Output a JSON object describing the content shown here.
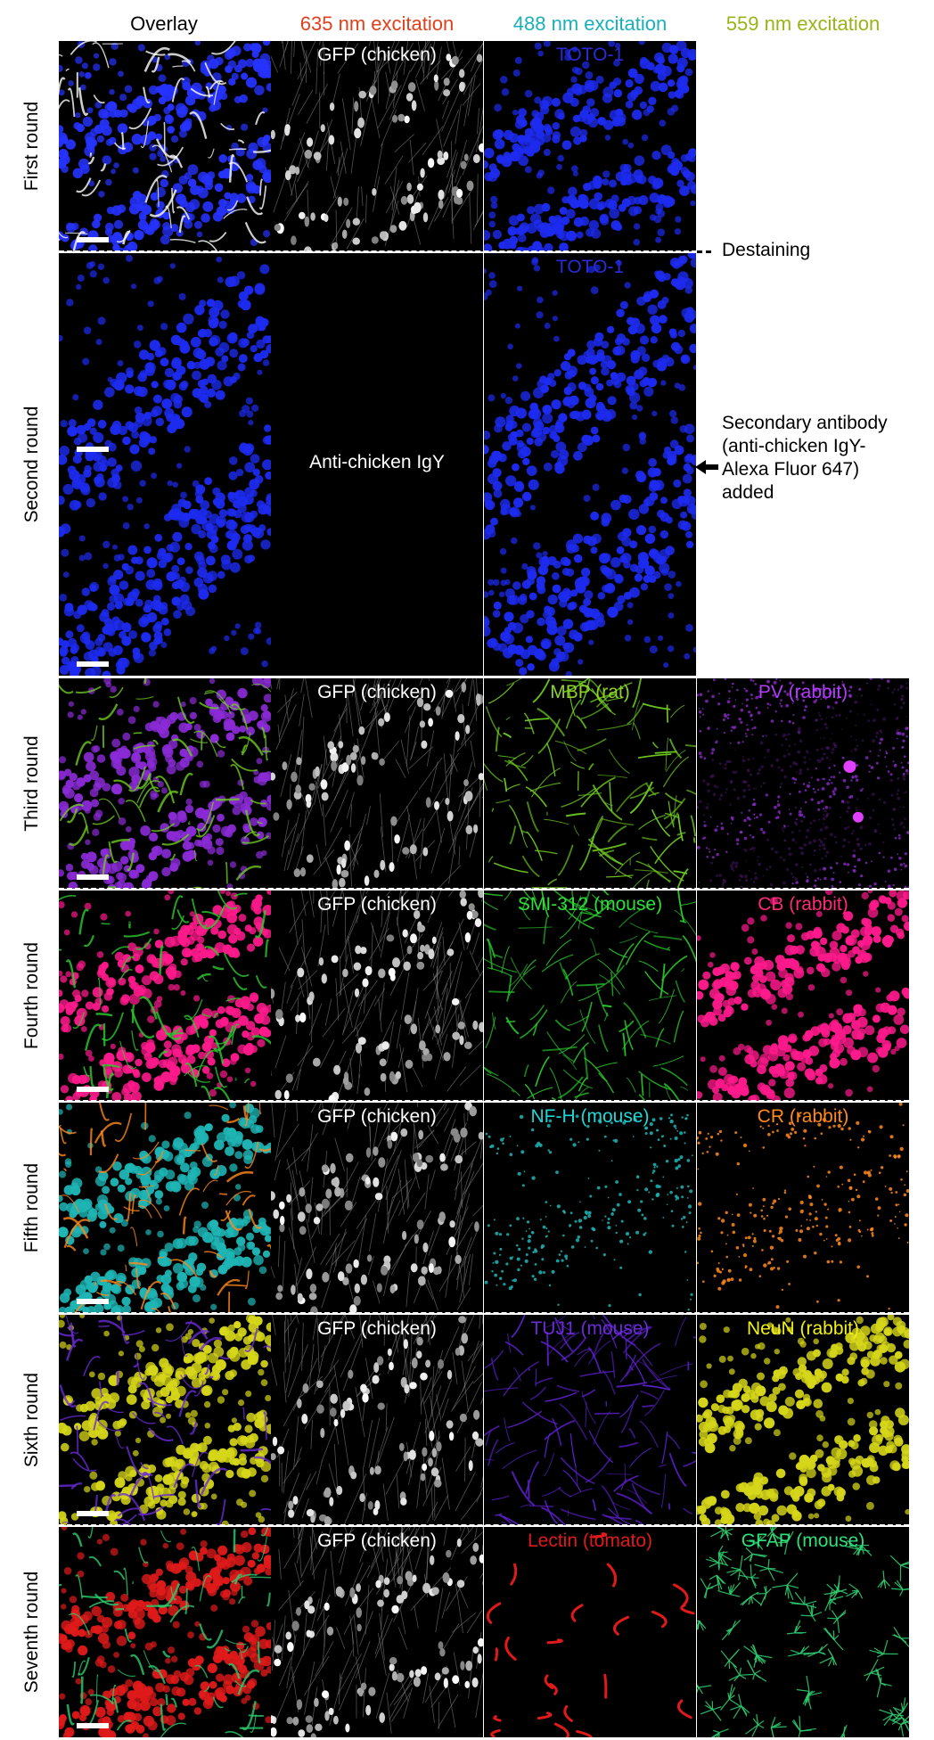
{
  "column_headers": [
    {
      "text": "Overlay",
      "color": "#000000"
    },
    {
      "text": "635 nm excitation",
      "color": "#e0401c"
    },
    {
      "text": "488 nm excitation",
      "color": "#19b0b8"
    },
    {
      "text": "559 nm excitation",
      "color": "#9ab319"
    }
  ],
  "rows": [
    {
      "label": "First round",
      "panels": [
        {
          "label": "",
          "color": "#ffffff",
          "kind": "overlay",
          "tint": "#2633ff",
          "tint2": "#ffffff"
        },
        {
          "label": "GFP (chicken)",
          "color": "#ffffff",
          "kind": "gfp",
          "tint": "#ffffff"
        },
        {
          "label": "TOTO-1",
          "color": "#2a2ad9",
          "kind": "nuclei",
          "tint": "#1d2bf0"
        }
      ]
    },
    {
      "label": "Second round",
      "panels": [
        {
          "label": "",
          "color": "#ffffff",
          "kind": "nuclei",
          "tint": "#1d2bf0"
        },
        {
          "label": "Anti-chicken IgY",
          "color": "#ffffff",
          "kind": "blank",
          "tint": "#000000"
        },
        {
          "label": "TOTO-1",
          "color": "#2a2ad9",
          "kind": "nuclei",
          "tint": "#1d2bf0"
        }
      ]
    },
    {
      "label": "Third round",
      "panels": [
        {
          "label": "",
          "color": "#ffffff",
          "kind": "overlay",
          "tint": "#8a2bd6",
          "tint2": "#6ecb20"
        },
        {
          "label": "GFP (chicken)",
          "color": "#ffffff",
          "kind": "gfp",
          "tint": "#ffffff"
        },
        {
          "label": "MBP (rat)",
          "color": "#8fd12a",
          "kind": "fibers",
          "tint": "#6ecb20"
        },
        {
          "label": "PV (rabbit)",
          "color": "#b43cff",
          "kind": "diffuse",
          "tint": "#9b30e0"
        }
      ]
    },
    {
      "label": "Fourth round",
      "panels": [
        {
          "label": "",
          "color": "#ffffff",
          "kind": "overlay",
          "tint": "#ff1a8c",
          "tint2": "#2ecc2e"
        },
        {
          "label": "GFP (chicken)",
          "color": "#ffffff",
          "kind": "gfp",
          "tint": "#ffffff"
        },
        {
          "label": "SMI-312 (mouse)",
          "color": "#2ede3a",
          "kind": "fibers",
          "tint": "#28c82a"
        },
        {
          "label": "CB (rabbit)",
          "color": "#ff2a78",
          "kind": "nuclei",
          "tint": "#ff1a8c"
        }
      ]
    },
    {
      "label": "Fifth round",
      "panels": [
        {
          "label": "",
          "color": "#ffffff",
          "kind": "overlay",
          "tint": "#1fb5b5",
          "tint2": "#ff8a1a"
        },
        {
          "label": "GFP (chicken)",
          "color": "#ffffff",
          "kind": "gfp",
          "tint": "#ffffff"
        },
        {
          "label": "NF-H (mouse)",
          "color": "#1fd6d6",
          "kind": "sparse",
          "tint": "#1fb5b5"
        },
        {
          "label": "CR (rabbit)",
          "color": "#ff8a1a",
          "kind": "sparse",
          "tint": "#ff8a1a"
        }
      ]
    },
    {
      "label": "Sixth round",
      "panels": [
        {
          "label": "",
          "color": "#ffffff",
          "kind": "overlay",
          "tint": "#d6d61a",
          "tint2": "#6a2bd6"
        },
        {
          "label": "GFP (chicken)",
          "color": "#ffffff",
          "kind": "gfp",
          "tint": "#ffffff"
        },
        {
          "label": "TUJ1 (mouse)",
          "color": "#6a2bd6",
          "kind": "fibers",
          "tint": "#5a1fc8"
        },
        {
          "label": "NeuN (rabbit)",
          "color": "#f0f01a",
          "kind": "nuclei",
          "tint": "#d6d61a"
        }
      ]
    },
    {
      "label": "Seventh round",
      "panels": [
        {
          "label": "",
          "color": "#ffffff",
          "kind": "overlay",
          "tint": "#e01a1a",
          "tint2": "#2ecc6e"
        },
        {
          "label": "GFP (chicken)",
          "color": "#ffffff",
          "kind": "gfp",
          "tint": "#ffffff"
        },
        {
          "label": "Lectin (tomato)",
          "color": "#e01a1a",
          "kind": "vessels",
          "tint": "#e01a1a"
        },
        {
          "label": "GFAP (mouse)",
          "color": "#2ee07a",
          "kind": "astro",
          "tint": "#2ecc6e"
        }
      ]
    }
  ],
  "annotations": {
    "destaining": "Destaining",
    "secondary_antibody": [
      "Secondary antibody",
      "(anti-chicken IgY-",
      "Alexa Fluor 647)",
      "added"
    ]
  }
}
